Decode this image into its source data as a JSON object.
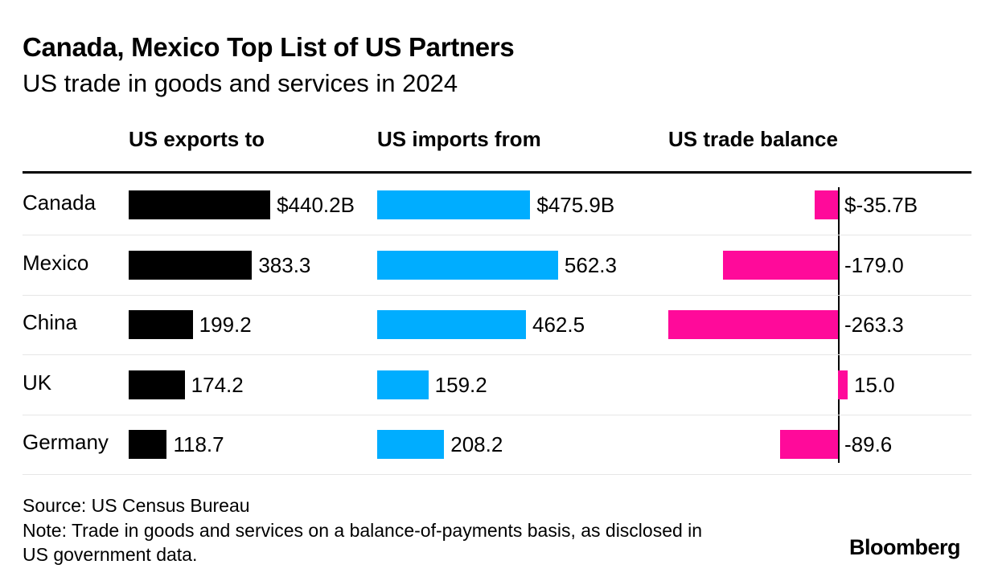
{
  "title": "Canada, Mexico Top List of US Partners",
  "subtitle": "US trade in goods and services in 2024",
  "headers": {
    "exports": "US exports to",
    "imports": "US imports from",
    "balance": "US trade balance"
  },
  "colors": {
    "exports": "#000000",
    "imports": "#00adff",
    "balance": "#ff0a9a"
  },
  "chart_data": {
    "type": "bar",
    "categories": [
      "Canada",
      "Mexico",
      "China",
      "UK",
      "Germany"
    ],
    "series": [
      {
        "name": "US exports to",
        "values": [
          440.2,
          383.3,
          199.2,
          174.2,
          118.7
        ],
        "labels": [
          "$440.2B",
          "383.3",
          "199.2",
          "174.2",
          "118.7"
        ]
      },
      {
        "name": "US imports from",
        "values": [
          475.9,
          562.3,
          462.5,
          159.2,
          208.2
        ],
        "labels": [
          "$475.9B",
          "562.3",
          "462.5",
          "159.2",
          "208.2"
        ]
      },
      {
        "name": "US trade balance",
        "values": [
          -35.7,
          -179.0,
          -263.3,
          15.0,
          -89.6
        ],
        "labels": [
          "$-35.7B",
          "-179.0",
          "-263.3",
          "15.0",
          "-89.6"
        ]
      }
    ]
  },
  "footer": {
    "source": "Source: US Census Bureau",
    "note": "Note: Trade in goods and services on a balance-of-payments basis, as disclosed in US government data.",
    "brand": "Bloomberg"
  }
}
